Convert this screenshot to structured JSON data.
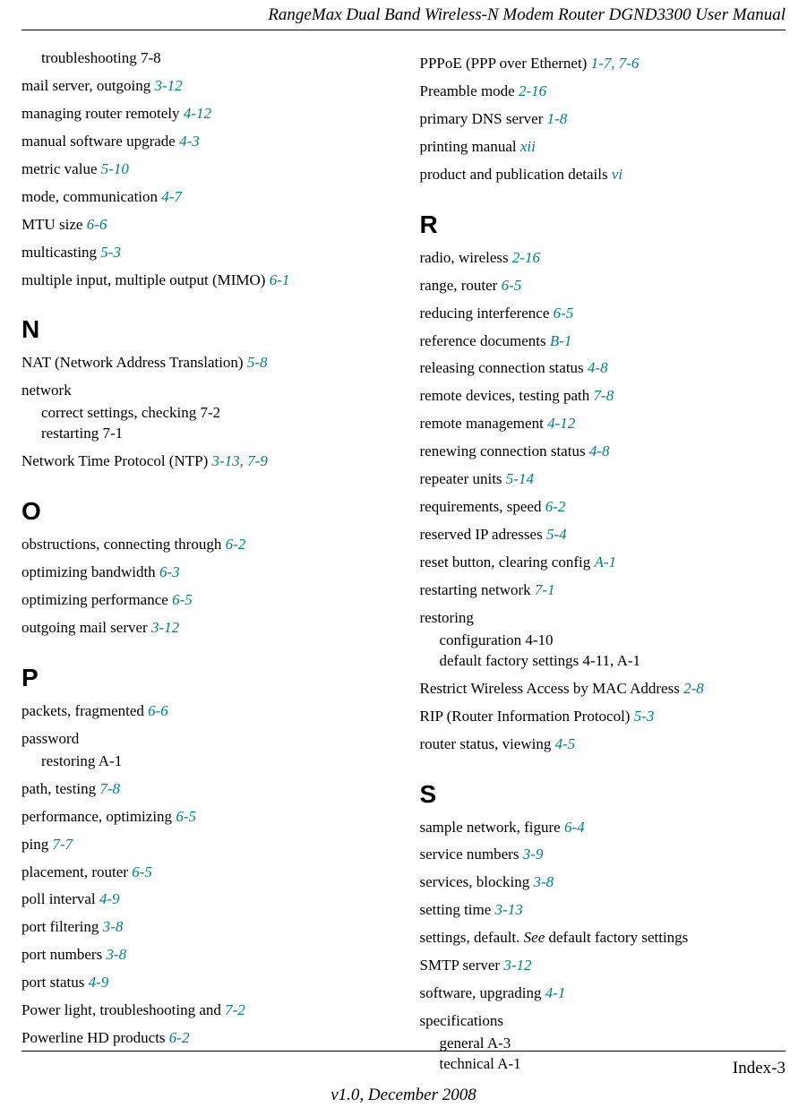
{
  "header": {
    "title": "RangeMax Dual Band Wireless-N Modem Router DGND3300 User Manual"
  },
  "footer": {
    "pagenum": "Index-3",
    "version": "v1.0, December 2008"
  },
  "colors": {
    "ref": "#008080",
    "text": "#000000",
    "bg": "#ffffff"
  },
  "left": [
    {
      "type": "sub",
      "lines": [
        {
          "term": "troubleshooting",
          "ref": "7-8"
        }
      ]
    },
    {
      "type": "entry",
      "term": "mail server, outgoing",
      "ref": "3-12"
    },
    {
      "type": "entry",
      "term": "managing router remotely",
      "ref": "4-12"
    },
    {
      "type": "entry",
      "term": "manual software upgrade",
      "ref": "4-3"
    },
    {
      "type": "entry",
      "term": "metric value",
      "ref": "5-10"
    },
    {
      "type": "entry",
      "term": "mode, communication",
      "ref": "4-7"
    },
    {
      "type": "entry",
      "term": "MTU size",
      "ref": "6-6"
    },
    {
      "type": "entry",
      "term": "multicasting",
      "ref": "5-3"
    },
    {
      "type": "entry",
      "term": "multiple input, multiple output (MIMO)",
      "ref": "6-1"
    },
    {
      "type": "letter",
      "text": "N"
    },
    {
      "type": "entry",
      "term": "NAT (Network Address Translation)",
      "ref": "5-8"
    },
    {
      "type": "entry",
      "term": "network",
      "ref": ""
    },
    {
      "type": "sub",
      "lines": [
        {
          "term": "correct settings, checking",
          "ref": "7-2"
        },
        {
          "term": "restarting",
          "ref": "7-1"
        }
      ]
    },
    {
      "type": "entry",
      "term": "Network Time Protocol (NTP)",
      "ref": "3-13, 7-9"
    },
    {
      "type": "letter",
      "text": "O"
    },
    {
      "type": "entry",
      "term": "obstructions, connecting through",
      "ref": "6-2"
    },
    {
      "type": "entry",
      "term": "optimizing bandwidth",
      "ref": "6-3"
    },
    {
      "type": "entry",
      "term": "optimizing performance",
      "ref": "6-5"
    },
    {
      "type": "entry",
      "term": "outgoing mail server",
      "ref": "3-12"
    },
    {
      "type": "letter",
      "text": "P"
    },
    {
      "type": "entry",
      "term": "packets, fragmented",
      "ref": "6-6"
    },
    {
      "type": "entry",
      "term": "password",
      "ref": ""
    },
    {
      "type": "sub",
      "lines": [
        {
          "term": "restoring",
          "ref": "A-1"
        }
      ]
    },
    {
      "type": "entry",
      "term": "path, testing",
      "ref": "7-8"
    },
    {
      "type": "entry",
      "term": "performance, optimizing",
      "ref": "6-5"
    },
    {
      "type": "entry",
      "term": "ping",
      "ref": "7-7"
    },
    {
      "type": "entry",
      "term": "placement, router",
      "ref": "6-5"
    },
    {
      "type": "entry",
      "term": "poll interval",
      "ref": "4-9"
    },
    {
      "type": "entry",
      "term": "port filtering",
      "ref": "3-8"
    },
    {
      "type": "entry",
      "term": "port numbers",
      "ref": "3-8"
    },
    {
      "type": "entry",
      "term": "port status",
      "ref": "4-9"
    },
    {
      "type": "entry",
      "term": "Power light, troubleshooting and",
      "ref": "7-2"
    },
    {
      "type": "entry",
      "term": "Powerline HD products",
      "ref": "6-2"
    }
  ],
  "right": [
    {
      "type": "entry",
      "term": "PPPoE (PPP over Ethernet)",
      "ref": "1-7, 7-6"
    },
    {
      "type": "entry",
      "term": "Preamble mode",
      "ref": "2-16"
    },
    {
      "type": "entry",
      "term": "primary DNS server",
      "ref": "1-8"
    },
    {
      "type": "entry",
      "term": "printing manual",
      "ref": "xii"
    },
    {
      "type": "entry",
      "term": "product and publication details",
      "ref": "vi"
    },
    {
      "type": "letter",
      "text": "R"
    },
    {
      "type": "entry",
      "term": "radio, wireless",
      "ref": "2-16"
    },
    {
      "type": "entry",
      "term": "range, router",
      "ref": "6-5"
    },
    {
      "type": "entry",
      "term": "reducing interference",
      "ref": "6-5"
    },
    {
      "type": "entry",
      "term": "reference documents",
      "ref": "B-1"
    },
    {
      "type": "entry",
      "term": "releasing connection status",
      "ref": "4-8"
    },
    {
      "type": "entry",
      "term": "remote devices, testing path",
      "ref": "7-8"
    },
    {
      "type": "entry",
      "term": "remote management",
      "ref": "4-12"
    },
    {
      "type": "entry",
      "term": "renewing connection status",
      "ref": "4-8"
    },
    {
      "type": "entry",
      "term": "repeater units",
      "ref": "5-14"
    },
    {
      "type": "entry",
      "term": "requirements, speed",
      "ref": "6-2"
    },
    {
      "type": "entry",
      "term": "reserved IP adresses",
      "ref": "5-4"
    },
    {
      "type": "entry",
      "term": "reset button, clearing config",
      "ref": "A-1"
    },
    {
      "type": "entry",
      "term": "restarting network",
      "ref": "7-1"
    },
    {
      "type": "entry",
      "term": "restoring",
      "ref": ""
    },
    {
      "type": "sub",
      "lines": [
        {
          "term": "configuration",
          "ref": "4-10"
        },
        {
          "term": "default factory settings",
          "ref": "4-11, A-1"
        }
      ]
    },
    {
      "type": "entry",
      "term": "Restrict Wireless Access by MAC Address",
      "ref": "2-8"
    },
    {
      "type": "entry",
      "term": "RIP (Router Information Protocol)",
      "ref": "5-3"
    },
    {
      "type": "entry",
      "term": "router status, viewing",
      "ref": "4-5"
    },
    {
      "type": "letter",
      "text": "S"
    },
    {
      "type": "entry",
      "term": "sample network, figure",
      "ref": "6-4"
    },
    {
      "type": "entry",
      "term": "service numbers",
      "ref": "3-9"
    },
    {
      "type": "entry",
      "term": "services, blocking",
      "ref": "3-8"
    },
    {
      "type": "entry",
      "term": "setting time",
      "ref": "3-13"
    },
    {
      "type": "see",
      "term_before": "settings, default. ",
      "see_word": "See",
      "term_after": " default factory settings"
    },
    {
      "type": "entry",
      "term": "SMTP server",
      "ref": "3-12"
    },
    {
      "type": "entry",
      "term": "software, upgrading",
      "ref": "4-1"
    },
    {
      "type": "entry",
      "term": "specifications",
      "ref": ""
    },
    {
      "type": "sub",
      "lines": [
        {
          "term": "general",
          "ref": "A-3"
        },
        {
          "term": "technical",
          "ref": "A-1"
        }
      ]
    }
  ]
}
